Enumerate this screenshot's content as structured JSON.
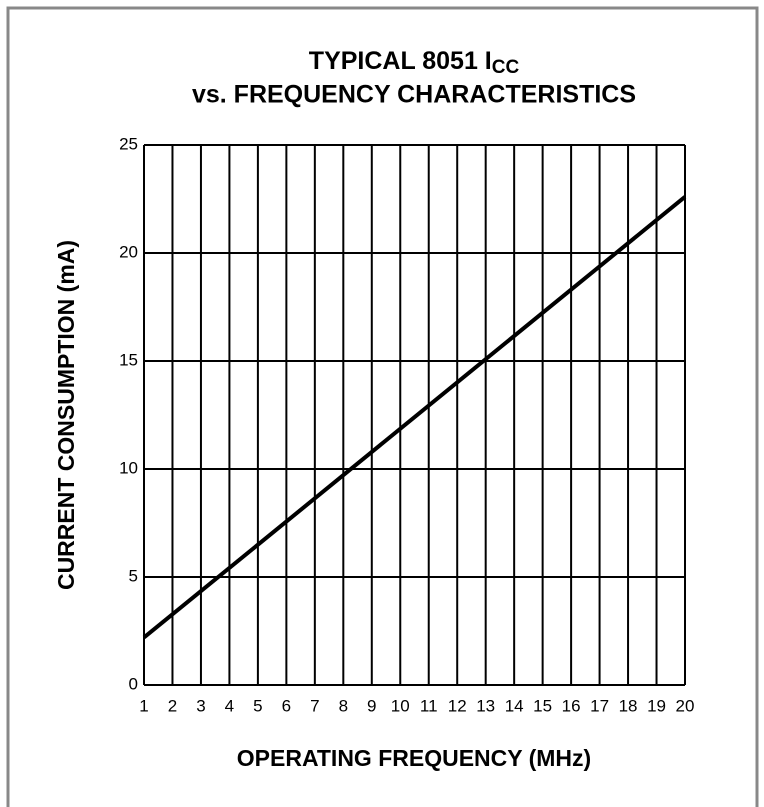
{
  "chart_data": {
    "type": "line",
    "title": {
      "text": "TYPICAL 8051 I",
      "subscript": "CC"
    },
    "subtitle": "vs. FREQUENCY CHARACTERISTICS",
    "x_label": "OPERATING FREQUENCY (MHz)",
    "y_label": "CURRENT CONSUMPTION (mA)",
    "x": [
      1,
      20
    ],
    "series": [
      {
        "name": "ICC",
        "color": "#000000",
        "values": [
          2.2,
          22.6
        ]
      }
    ],
    "xlim": [
      1,
      20
    ],
    "xticks": [
      1,
      2,
      3,
      4,
      5,
      6,
      7,
      8,
      9,
      10,
      11,
      12,
      13,
      14,
      15,
      16,
      17,
      18,
      19,
      20
    ],
    "ylim": [
      0,
      25
    ],
    "yticks": [
      0,
      5,
      10,
      15,
      20,
      25
    ],
    "grid": true
  }
}
